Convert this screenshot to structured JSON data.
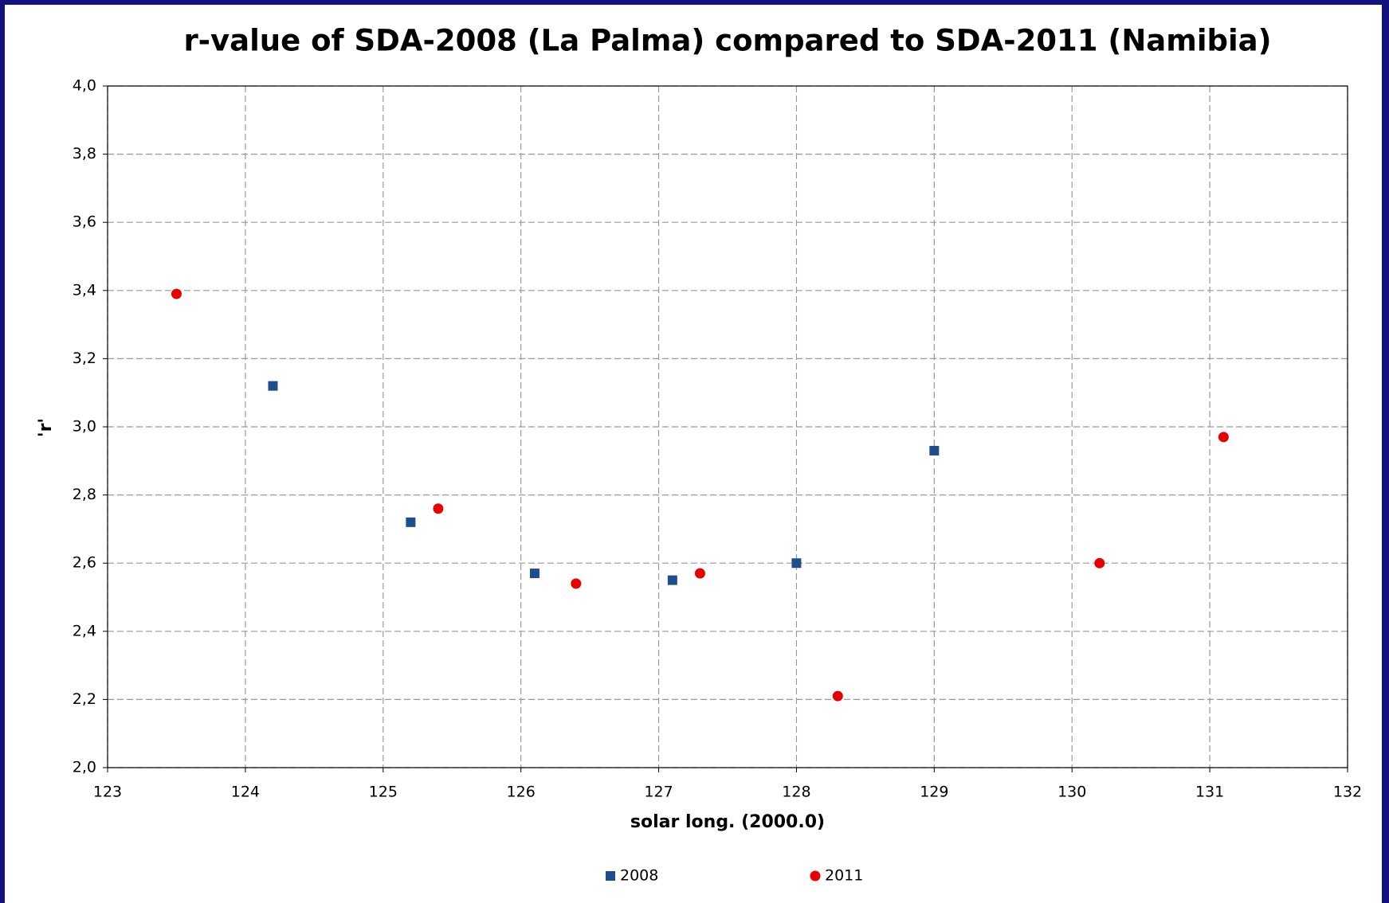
{
  "chart_data": {
    "type": "scatter",
    "title": "r-value of SDA-2008 (La Palma) compared to SDA-2011 (Namibia)",
    "x_label": "solar  long. (2000.0)",
    "y_label": "'r'",
    "xlim": [
      123,
      132
    ],
    "xticks": [
      123,
      124,
      125,
      126,
      127,
      128,
      129,
      130,
      131,
      132
    ],
    "ylim": [
      2.0,
      4.0
    ],
    "yticks": [
      {
        "value": 2.0,
        "label": "2,0"
      },
      {
        "value": 2.2,
        "label": "2,2"
      },
      {
        "value": 2.4,
        "label": "2,4"
      },
      {
        "value": 2.6,
        "label": "2,6"
      },
      {
        "value": 2.8,
        "label": "2,8"
      },
      {
        "value": 3.0,
        "label": "3,0"
      },
      {
        "value": 3.2,
        "label": "3,2"
      },
      {
        "value": 3.4,
        "label": "3,4"
      },
      {
        "value": 3.6,
        "label": "3,6"
      },
      {
        "value": 3.8,
        "label": "3,8"
      },
      {
        "value": 4.0,
        "label": "4,0"
      }
    ],
    "grid": true,
    "legend": "bottom",
    "series": [
      {
        "name": "2008",
        "color": "#1f4e8c",
        "marker": "square",
        "x": [
          124.2,
          125.2,
          126.1,
          127.1,
          128.0,
          129.0
        ],
        "values": [
          3.12,
          2.72,
          2.57,
          2.55,
          2.6,
          2.93
        ]
      },
      {
        "name": "2011",
        "color": "#e80000",
        "marker": "circle",
        "x": [
          123.5,
          125.4,
          126.4,
          127.3,
          128.3,
          130.2,
          131.1
        ],
        "values": [
          3.39,
          2.76,
          2.54,
          2.57,
          2.21,
          2.6,
          2.97
        ]
      }
    ]
  }
}
